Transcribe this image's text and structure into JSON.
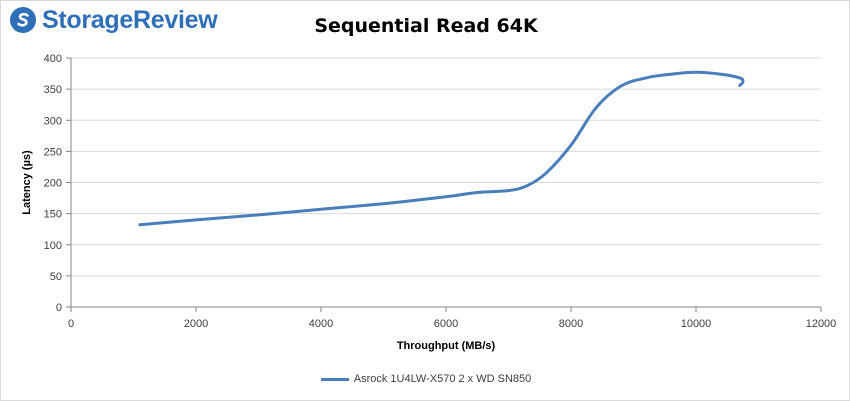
{
  "brand": {
    "name": "StorageReview",
    "color": "#2f6fb7"
  },
  "chart_data": {
    "type": "line",
    "title": "Sequential Read 64K",
    "xlabel": "Throughput (MB/s)",
    "ylabel": "Latency (µs)",
    "xlim": [
      0,
      12000
    ],
    "ylim": [
      0,
      400
    ],
    "xticks": [
      0,
      2000,
      4000,
      6000,
      8000,
      10000,
      12000
    ],
    "yticks": [
      0,
      50,
      100,
      150,
      200,
      250,
      300,
      350,
      400
    ],
    "grid": "horizontal",
    "legend_position": "bottom",
    "series": [
      {
        "name": "Asrock 1U4LW-X570 2 x WD SN850",
        "color": "#4a7ebb",
        "x": [
          1100,
          2000,
          3000,
          4000,
          5000,
          6000,
          6500,
          7000,
          7300,
          7600,
          8000,
          8400,
          8800,
          9200,
          9600,
          10000,
          10400,
          10700,
          10750,
          10700
        ],
        "y": [
          132,
          140,
          148,
          157,
          166,
          177,
          184,
          187,
          195,
          215,
          260,
          320,
          355,
          368,
          374,
          377,
          374,
          368,
          362,
          356
        ]
      }
    ]
  }
}
